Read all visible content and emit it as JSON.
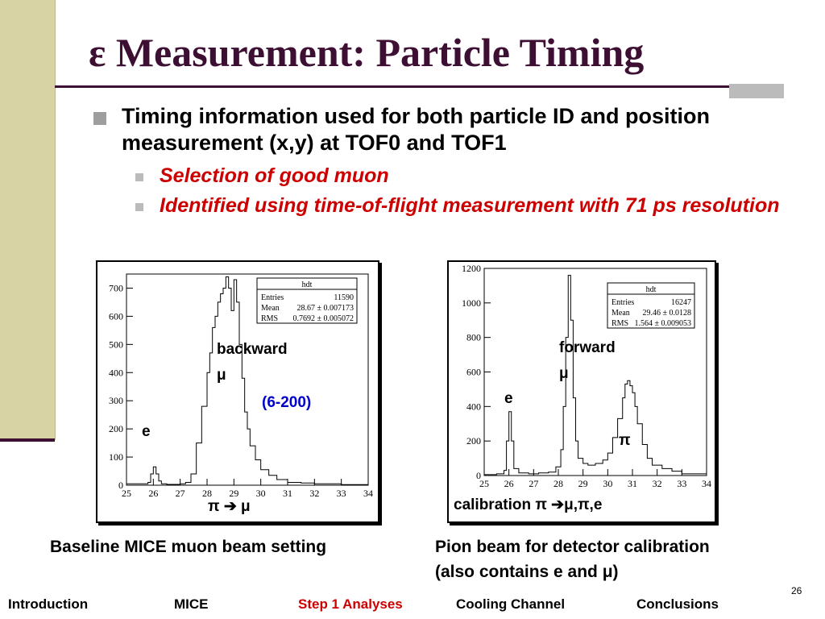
{
  "slide": {
    "title": "ε Measurement: Particle Timing",
    "bullet_main": "Timing information used for both particle ID and position measurement (x,y) at TOF0 and TOF1",
    "sub_bullets": [
      "Selection of good muon",
      "Identified using time-of-flight measurement with 71 ps resolution"
    ],
    "page_number": "26"
  },
  "left_plot": {
    "stats_title": "hdt",
    "stats": [
      {
        "label": "Entries",
        "value": "11590"
      },
      {
        "label": "Mean",
        "value": "28.67 ± 0.007173"
      },
      {
        "label": "RMS",
        "value": "0.7692 ± 0.005072"
      }
    ],
    "annotations": {
      "peak": "backward",
      "peak_symbol": "μ",
      "range": "(6-200)",
      "e_label": "e",
      "decay": "π ➔ μ"
    },
    "caption": "Baseline MICE muon beam setting"
  },
  "right_plot": {
    "stats_title": "hdt",
    "stats": [
      {
        "label": "Entries",
        "value": "16247"
      },
      {
        "label": "Mean",
        "value": "29.46 ± 0.0128"
      },
      {
        "label": "RMS",
        "value": "1.564 ± 0.009053"
      }
    ],
    "annotations": {
      "peak": "forward",
      "peak_symbol": "μ",
      "e_label": "e",
      "pi_label": "π",
      "calibration": "calibration π ➔μ,π,e"
    },
    "caption_line1": "Pion beam for detector calibration",
    "caption_line2": "(also contains e and μ)"
  },
  "footer": {
    "items": [
      "Introduction",
      "MICE",
      "Step 1 Analyses",
      "Cooling Channel",
      "Conclusions"
    ],
    "active_index": 2
  },
  "colors": {
    "title": "#3c0f33",
    "sub_bullet_text": "#cc0000",
    "range_label": "#0000cc",
    "left_bar": "#d8d3a4",
    "active_footer": "#cc0000"
  },
  "chart_data": [
    {
      "type": "line",
      "title": "",
      "xlabel": "",
      "ylabel": "",
      "xlim": [
        25,
        34
      ],
      "ylim": [
        0,
        750
      ],
      "x_ticks": [
        25,
        26,
        27,
        28,
        29,
        30,
        31,
        32,
        33,
        34
      ],
      "y_ticks": [
        0,
        100,
        200,
        300,
        400,
        500,
        600,
        700
      ],
      "series": [
        {
          "x": [
            25.0,
            25.3,
            25.6,
            25.8,
            25.9,
            26.0,
            26.1,
            26.2,
            26.3,
            26.5,
            26.8,
            27.0,
            27.2,
            27.4,
            27.6,
            27.8,
            28.0,
            28.1,
            28.2,
            28.3,
            28.4,
            28.5,
            28.6,
            28.7,
            28.8,
            28.9,
            29.0,
            29.1,
            29.2,
            29.3,
            29.4,
            29.5,
            29.6,
            29.8,
            30.0,
            30.3,
            30.6,
            31.0,
            31.5,
            32.0,
            33.0,
            34.0
          ],
          "y": [
            5,
            5,
            5,
            10,
            40,
            65,
            40,
            15,
            5,
            3,
            3,
            5,
            10,
            40,
            150,
            280,
            400,
            470,
            560,
            600,
            650,
            680,
            700,
            740,
            700,
            620,
            730,
            650,
            500,
            380,
            260,
            200,
            140,
            90,
            55,
            35,
            20,
            10,
            8,
            5,
            2,
            1
          ]
        }
      ]
    },
    {
      "type": "line",
      "title": "",
      "xlabel": "",
      "ylabel": "",
      "xlim": [
        25,
        34
      ],
      "ylim": [
        0,
        1200
      ],
      "x_ticks": [
        25,
        26,
        27,
        28,
        29,
        30,
        31,
        32,
        33,
        34
      ],
      "y_ticks": [
        0,
        200,
        400,
        600,
        800,
        1000,
        1200
      ],
      "series": [
        {
          "x": [
            25.0,
            25.5,
            25.8,
            25.9,
            26.0,
            26.1,
            26.2,
            26.4,
            26.8,
            27.2,
            27.6,
            27.9,
            28.1,
            28.2,
            28.3,
            28.4,
            28.5,
            28.6,
            28.7,
            28.8,
            29.0,
            29.2,
            29.5,
            29.8,
            30.0,
            30.2,
            30.4,
            30.6,
            30.7,
            30.8,
            30.9,
            31.0,
            31.1,
            31.2,
            31.4,
            31.6,
            31.8,
            32.2,
            32.6,
            33.0,
            34.0
          ],
          "y": [
            5,
            10,
            30,
            200,
            370,
            200,
            40,
            15,
            10,
            15,
            20,
            50,
            150,
            400,
            800,
            1160,
            900,
            450,
            200,
            100,
            70,
            60,
            70,
            90,
            130,
            220,
            330,
            450,
            530,
            550,
            520,
            480,
            400,
            300,
            180,
            100,
            60,
            40,
            25,
            10,
            5
          ]
        }
      ]
    }
  ]
}
